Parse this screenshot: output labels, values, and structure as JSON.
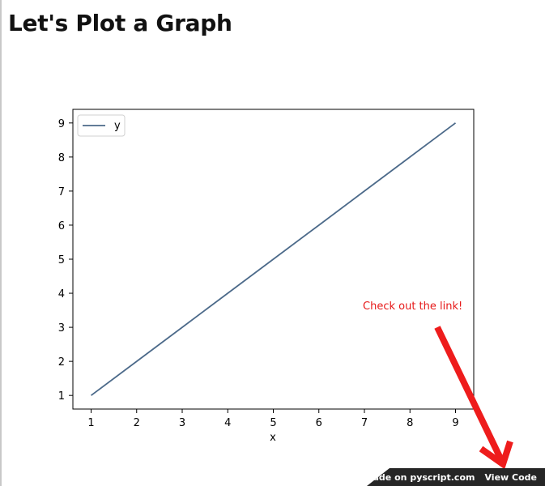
{
  "page": {
    "title": "Let's Plot a Graph"
  },
  "annotation": {
    "text": "Check out the link!",
    "color": "#e61919"
  },
  "footer": {
    "made_on_label": "Made on pyscript.com",
    "view_code_label": "View Code",
    "background": "#262626"
  },
  "chart_data": {
    "type": "line",
    "x": [
      1,
      2,
      3,
      4,
      5,
      6,
      7,
      8,
      9
    ],
    "series": [
      {
        "name": "y",
        "values": [
          1,
          2,
          3,
          4,
          5,
          6,
          7,
          8,
          9
        ],
        "color": "#4c6a8a"
      }
    ],
    "xlabel": "x",
    "ylabel": "",
    "xticks": [
      1,
      2,
      3,
      4,
      5,
      6,
      7,
      8,
      9
    ],
    "yticks": [
      1,
      2,
      3,
      4,
      5,
      6,
      7,
      8,
      9
    ],
    "xlim": [
      0.6,
      9.4
    ],
    "ylim": [
      0.6,
      9.4
    ],
    "grid": false,
    "legend": "top-left"
  }
}
